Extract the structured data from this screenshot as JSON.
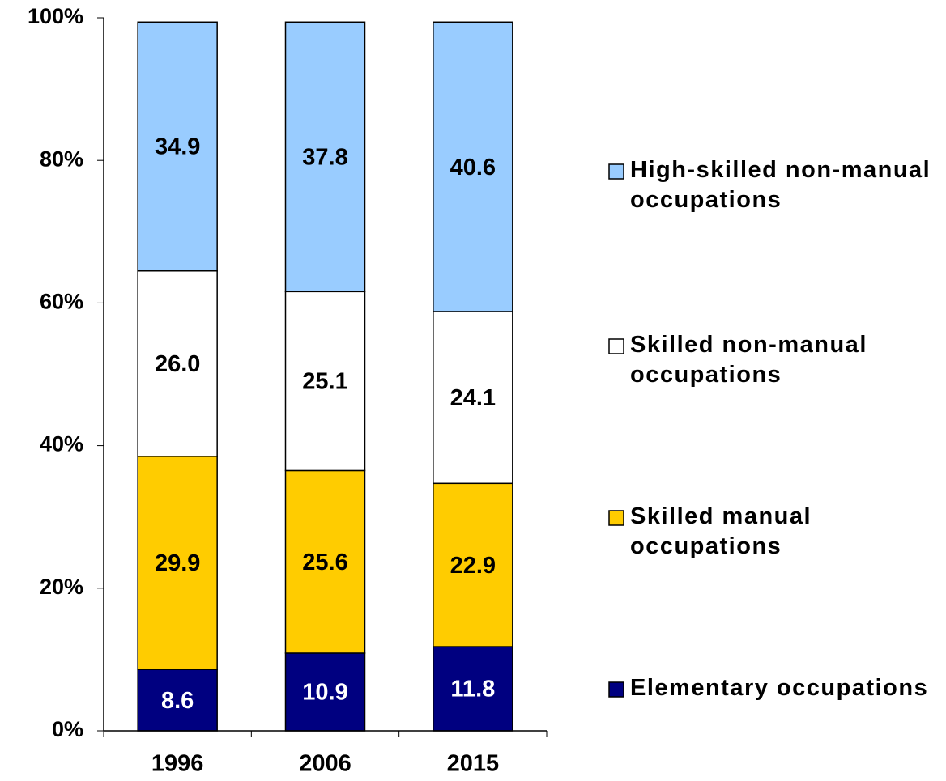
{
  "chart_data": {
    "type": "stacked_bar",
    "categories": [
      "1996",
      "2006",
      "2015"
    ],
    "series": [
      {
        "name": "Elementary occupations",
        "color": "#000080",
        "values": [
          8.6,
          10.9,
          11.8
        ]
      },
      {
        "name": "Skilled manual occupations",
        "color": "#ffcc00",
        "values": [
          29.9,
          25.6,
          22.9
        ]
      },
      {
        "name": "Skilled non-manual occupations",
        "color": "#ffffff",
        "values": [
          26.0,
          25.1,
          24.1
        ],
        "value_labels": [
          "26.0",
          "25.1",
          "24.1"
        ]
      },
      {
        "name": "High-skilled non-manual occupations",
        "color": "#99ccff",
        "values": [
          34.9,
          37.8,
          40.6
        ]
      }
    ],
    "ylim": [
      0,
      100
    ],
    "yticks": [
      {
        "value": 0,
        "label": "0%"
      },
      {
        "value": 20,
        "label": "20%"
      },
      {
        "value": 40,
        "label": "40%"
      },
      {
        "value": 60,
        "label": "60%"
      },
      {
        "value": 80,
        "label": "80%"
      },
      {
        "value": 100,
        "label": "100%"
      }
    ],
    "legend": "right"
  }
}
